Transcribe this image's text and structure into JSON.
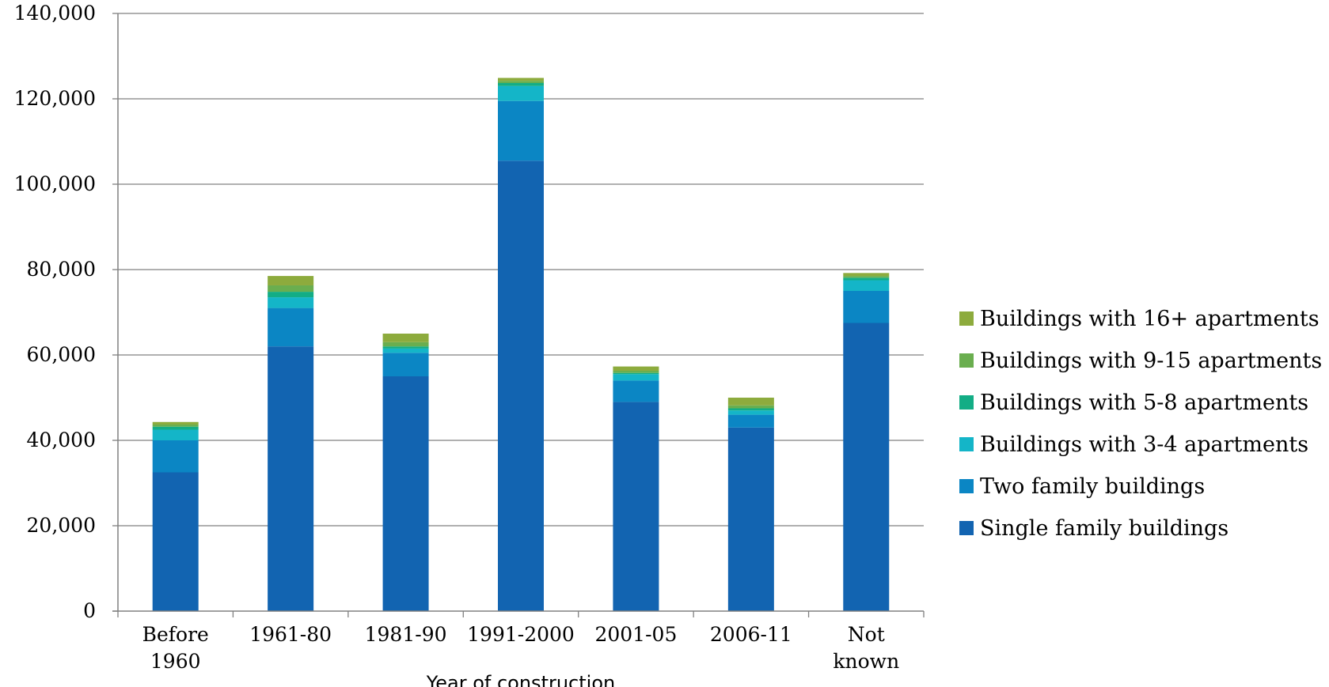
{
  "chart_data": {
    "type": "bar",
    "stacked": true,
    "title": "",
    "xlabel": "Year of construction",
    "ylabel": "",
    "ylim": [
      0,
      140000
    ],
    "yticks": [
      "0",
      "20,000",
      "40,000",
      "60,000",
      "80,000",
      "100,000",
      "120,000",
      "140,000"
    ],
    "ytick_values": [
      0,
      20000,
      40000,
      60000,
      80000,
      100000,
      120000,
      140000
    ],
    "grid": true,
    "legend_position": "right",
    "categories": [
      [
        "Before",
        "1960"
      ],
      [
        "1961-80"
      ],
      [
        "1981-90"
      ],
      [
        "1991-2000"
      ],
      [
        "2001-05"
      ],
      [
        "2006-11"
      ],
      [
        "Not",
        "known"
      ]
    ],
    "series": [
      {
        "name": "Single family buildings",
        "color": "#1264b1",
        "values": [
          32500,
          62000,
          55000,
          105500,
          49000,
          43000,
          67500
        ]
      },
      {
        "name": "Two family buildings",
        "color": "#0b86c4",
        "values": [
          7500,
          9000,
          5500,
          14000,
          5000,
          3000,
          7500
        ]
      },
      {
        "name": "Buildings with 3-4 apartments",
        "color": "#14b5c8",
        "values": [
          2500,
          2500,
          1000,
          3500,
          1500,
          1000,
          2500
        ]
      },
      {
        "name": "Buildings with 5-8 apartments",
        "color": "#13ad85",
        "values": [
          700,
          1300,
          500,
          700,
          300,
          500,
          600
        ]
      },
      {
        "name": "Buildings with 9-15 apartments",
        "color": "#6aae4f",
        "values": [
          500,
          1500,
          1000,
          500,
          500,
          700,
          400
        ]
      },
      {
        "name": "Buildings with 16+ apartments",
        "color": "#8dab3d",
        "values": [
          600,
          2200,
          2000,
          700,
          1000,
          1800,
          700
        ]
      }
    ]
  }
}
